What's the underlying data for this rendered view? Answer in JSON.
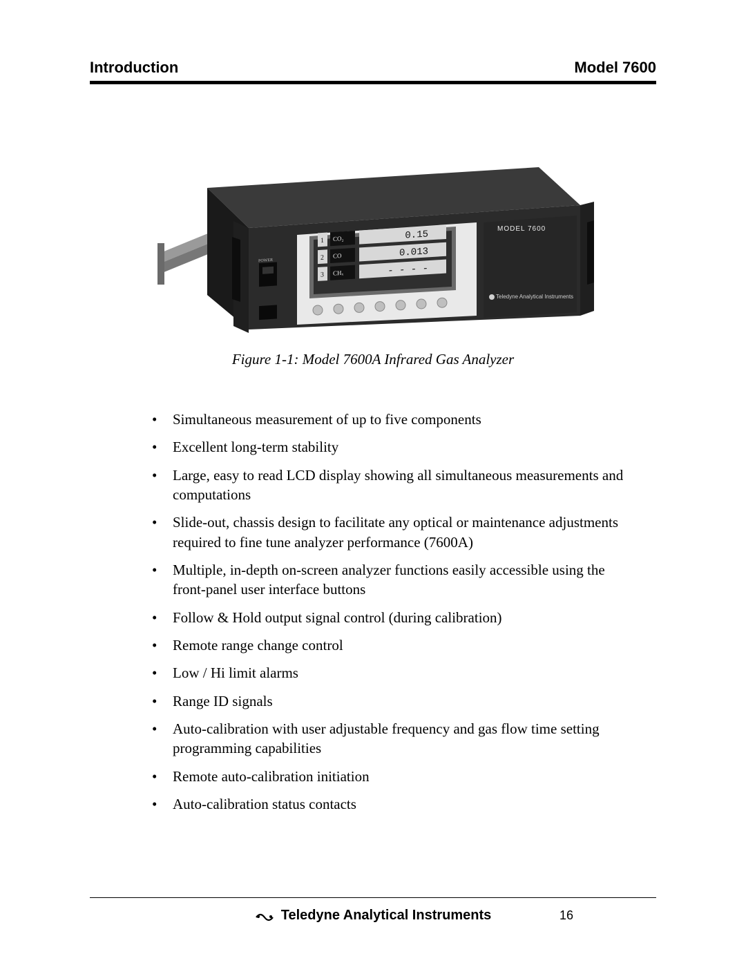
{
  "header": {
    "left": "Introduction",
    "right": "Model 7600"
  },
  "figure": {
    "caption": "Figure 1-1: Model 7600A Infrared Gas Analyzer",
    "device": {
      "model_label": "MODEL 7600",
      "brand_label": "Teledyne Analytical Instruments",
      "display_rows": [
        {
          "ch": "1",
          "gas": "CO₂",
          "value": "0.15"
        },
        {
          "ch": "2",
          "gas": "CO",
          "value": "0.013"
        },
        {
          "ch": "3",
          "gas": "CHₓ",
          "value": "- - - -"
        }
      ],
      "power_label": "POWER",
      "colors": {
        "chassis": "#2b2b2b",
        "chassis_dark": "#1a1a1a",
        "faceplate": "#e9e9e9",
        "screen_frame": "#6a6a6a",
        "screen_bg": "#2f2f2f",
        "value_bg": "#d8d8d8",
        "value_text": "#111111",
        "button": "#bfbfbf",
        "brand_text": "#d0d0d0",
        "rail": "#9a9a9a"
      }
    }
  },
  "features": [
    "Simultaneous measurement of up to five components",
    "Excellent long-term stability",
    "Large, easy to read LCD display showing all simultaneous measurements and computations",
    "Slide-out, chassis design to facilitate any optical or maintenance adjustments required to fine tune analyzer performance (7600A)",
    "Multiple, in-depth on-screen analyzer functions easily accessible using the front-panel user interface buttons",
    "Follow & Hold output signal control (during calibration)",
    "Remote range change control",
    "Low / Hi limit alarms",
    "Range ID signals",
    "Auto-calibration with user adjustable frequency and gas flow time setting programming capabilities",
    "Remote auto-calibration initiation",
    "Auto-calibration status contacts"
  ],
  "footer": {
    "company": "Teledyne Analytical Instruments",
    "page": "16"
  },
  "style": {
    "body_font_size": 21,
    "header_font_size": 22,
    "footer_font_size": 20,
    "text_color": "#000000",
    "background": "#ffffff"
  }
}
